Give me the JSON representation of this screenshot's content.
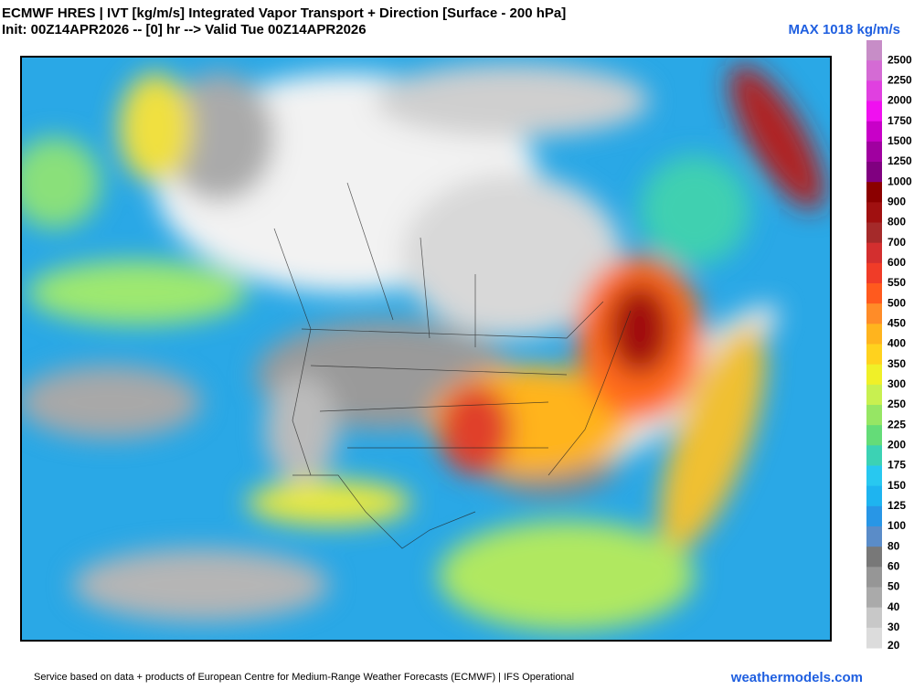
{
  "header": {
    "title": "ECMWF HRES | IVT [kg/m/s] Integrated Vapor Transport + Direction [Surface - 200 hPa]",
    "subtitle": "Init: 00Z14APR2026 -- [0] hr --> Valid Tue 00Z14APR2026",
    "max_label": "MAX 1018 kg/m/s"
  },
  "colorbar": {
    "levels": [
      {
        "value": 2500,
        "color": "#c78dc7"
      },
      {
        "value": 2250,
        "color": "#d46bd4"
      },
      {
        "value": 2000,
        "color": "#e040e0"
      },
      {
        "value": 1750,
        "color": "#f010f0"
      },
      {
        "value": 1500,
        "color": "#c800c8"
      },
      {
        "value": 1250,
        "color": "#a000a0"
      },
      {
        "value": 1000,
        "color": "#800080"
      },
      {
        "value": 900,
        "color": "#8b0000"
      },
      {
        "value": 800,
        "color": "#a01010"
      },
      {
        "value": 700,
        "color": "#a52a2a"
      },
      {
        "value": 600,
        "color": "#d32f2f"
      },
      {
        "value": 550,
        "color": "#f03c28"
      },
      {
        "value": 500,
        "color": "#ff5a1e"
      },
      {
        "value": 450,
        "color": "#ff8c28"
      },
      {
        "value": 400,
        "color": "#ffb41e"
      },
      {
        "value": 350,
        "color": "#ffd21e"
      },
      {
        "value": 300,
        "color": "#f0f028"
      },
      {
        "value": 250,
        "color": "#c8f050"
      },
      {
        "value": 225,
        "color": "#96e664"
      },
      {
        "value": 200,
        "color": "#64dc78"
      },
      {
        "value": 175,
        "color": "#3cd2b4"
      },
      {
        "value": 150,
        "color": "#28c8f0"
      },
      {
        "value": 125,
        "color": "#1eb4f0"
      },
      {
        "value": 100,
        "color": "#2896e6"
      },
      {
        "value": 80,
        "color": "#5a8cc8"
      },
      {
        "value": 60,
        "color": "#787878"
      },
      {
        "value": 50,
        "color": "#969696"
      },
      {
        "value": 40,
        "color": "#aaaaaa"
      },
      {
        "value": 30,
        "color": "#c8c8c8"
      },
      {
        "value": 20,
        "color": "#dcdcdc"
      }
    ]
  },
  "footer": {
    "credit": "Service based on data + products of European Centre for Medium-Range Weather Forecasts (ECMWF) | IFS Operational",
    "site": "weathermodels.com"
  }
}
